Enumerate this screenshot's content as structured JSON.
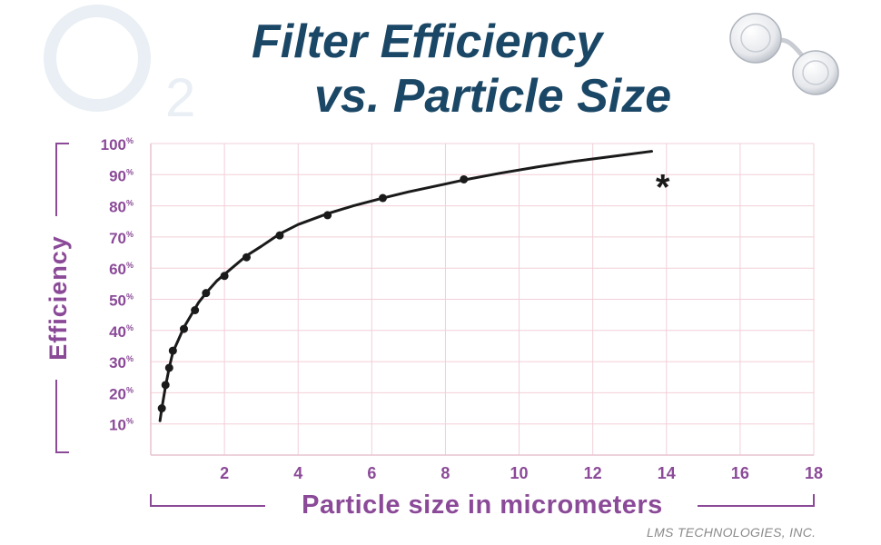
{
  "title_line1": "Filter Efficiency",
  "title_line2": "vs. Particle Size",
  "credit": "LMS TECHNOLOGIES, INC.",
  "watermark_text": "O2",
  "colors": {
    "title": "#1b4766",
    "axis_text": "#8b4a98",
    "grid": "#f2cfd8",
    "curve": "#1a1a1a"
  },
  "chart_data": {
    "type": "line",
    "xlabel": "Particle size in micrometers",
    "ylabel": "Efficiency",
    "xlim": [
      0,
      18
    ],
    "ylim": [
      0,
      100
    ],
    "grid": true,
    "x_ticks": [
      2,
      4,
      6,
      8,
      10,
      12,
      14,
      16,
      18
    ],
    "y_ticks": [
      10,
      20,
      30,
      40,
      50,
      60,
      70,
      80,
      90,
      100
    ],
    "y_tick_suffix": "%",
    "annotation": "*",
    "annotation_point": {
      "x": 13.9,
      "y": 88.5
    },
    "series": [
      {
        "curve": {
          "x": [
            0.25,
            0.3,
            0.4,
            0.5,
            0.6,
            0.75,
            0.9,
            1.1,
            1.3,
            1.5,
            1.8,
            2.2,
            2.6,
            3.0,
            3.5,
            4.0,
            4.8,
            5.5,
            6.3,
            7.0,
            8.0,
            8.5,
            9.5,
            10.5,
            11.5,
            12.5,
            13.6
          ],
          "y": [
            11,
            15,
            22,
            28,
            33,
            37,
            41,
            45,
            49,
            52,
            56,
            60,
            64,
            67,
            71,
            74,
            77.5,
            80,
            82.5,
            84.5,
            87,
            88.3,
            90.5,
            92.5,
            94.3,
            95.8,
            97.5
          ]
        },
        "points": {
          "x": [
            0.3,
            0.4,
            0.5,
            0.6,
            0.9,
            1.2,
            1.5,
            2.0,
            2.6,
            3.5,
            4.8,
            6.3,
            8.5
          ],
          "y": [
            15,
            22.5,
            28,
            33.5,
            40.5,
            46.5,
            52,
            57.5,
            63.5,
            70.5,
            77,
            82.5,
            88.5
          ]
        }
      }
    ]
  }
}
